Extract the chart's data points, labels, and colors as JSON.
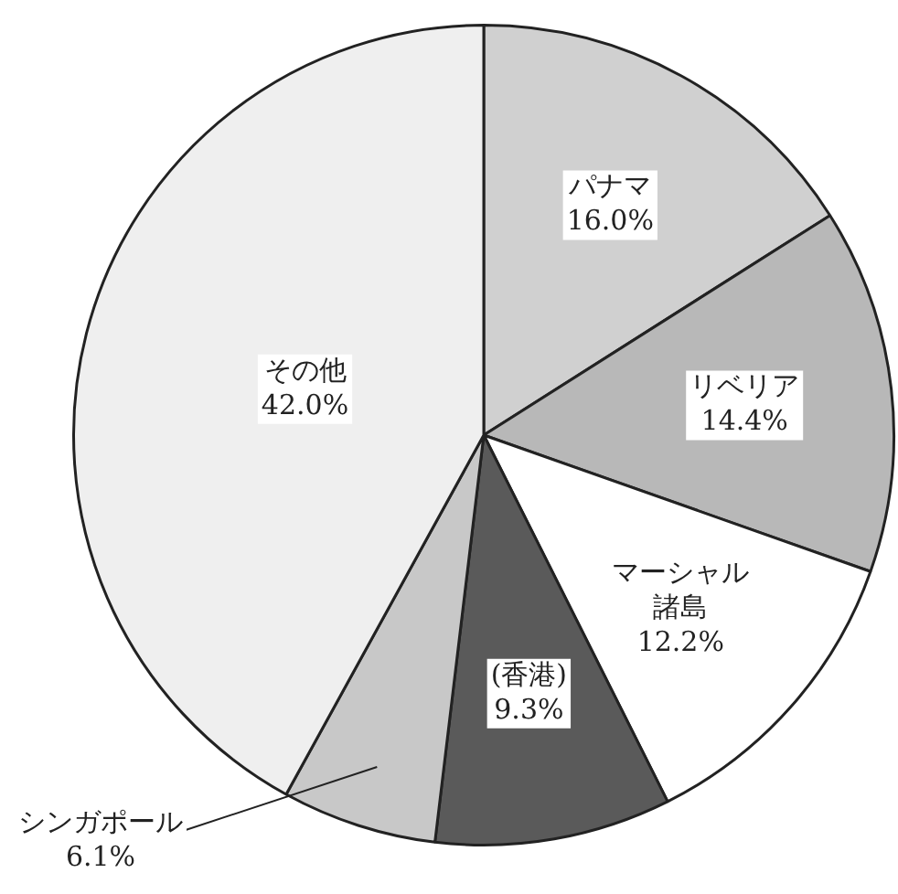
{
  "chart_data": {
    "type": "pie",
    "categories": [
      "パナマ",
      "リベリア",
      "マーシャル諸島",
      "(香港)",
      "シンガポール",
      "その他"
    ],
    "values": [
      16.0,
      14.4,
      12.2,
      9.3,
      6.1,
      42.0
    ],
    "value_labels": [
      "16.0%",
      "14.4%",
      "12.2%",
      "9.3%",
      "6.1%",
      "42.0%"
    ],
    "colors": [
      "#d0d0d0",
      "#b8b8b8",
      "#ffffff",
      "#5a5a5a",
      "#c8c8c8",
      "#efefef"
    ],
    "legend": false
  }
}
